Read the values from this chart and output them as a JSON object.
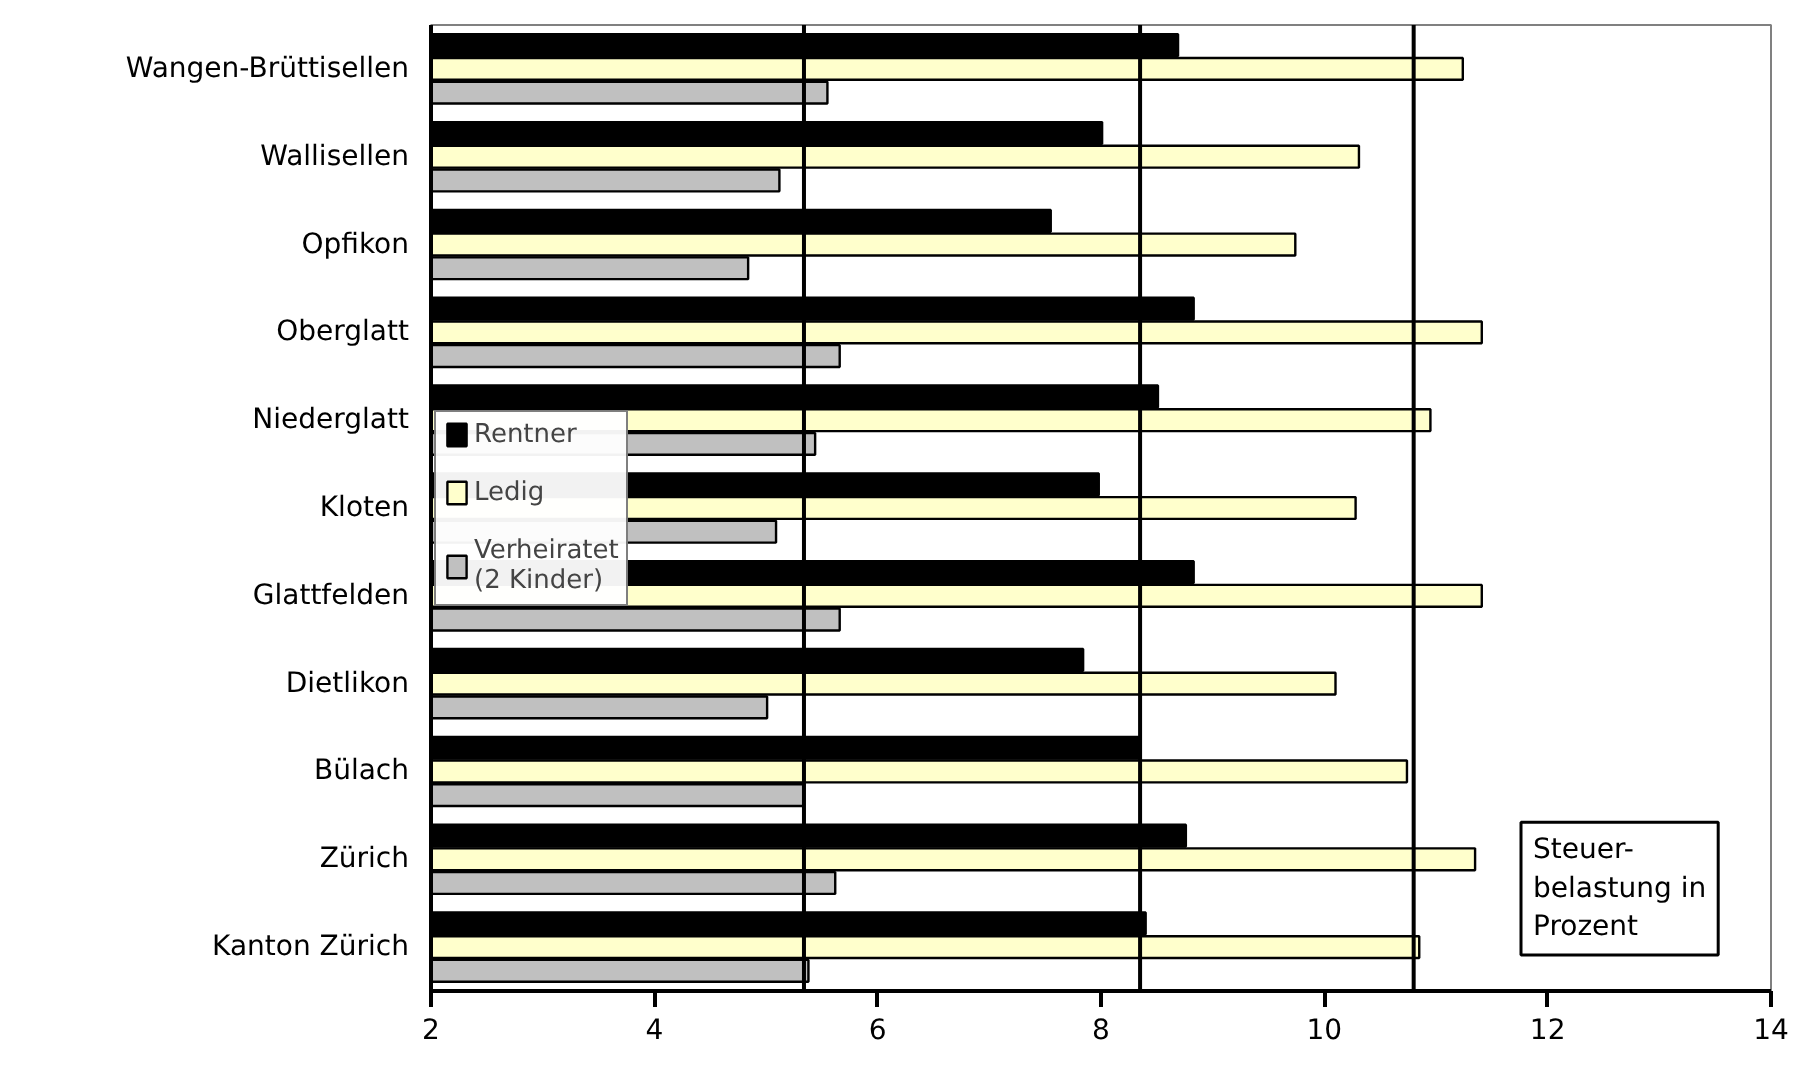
{
  "chart_data": {
    "type": "bar",
    "orientation": "horizontal",
    "categories": [
      "Wangen-Brüttisellen",
      "Wallisellen",
      "Opfikon",
      "Oberglatt",
      "Niederglatt",
      "Kloten",
      "Glattfelden",
      "Dietlikon",
      "Bülach",
      "Zürich",
      "Kanton Zürich"
    ],
    "series": [
      {
        "name": "Rentner",
        "color": "#000000",
        "values": [
          8.69,
          8.01,
          7.55,
          8.83,
          8.51,
          7.98,
          8.83,
          7.84,
          8.34,
          8.76,
          8.4
        ]
      },
      {
        "name": "Ledig",
        "color": "#ffffcc",
        "values": [
          11.24,
          10.31,
          9.74,
          11.41,
          10.95,
          10.28,
          11.41,
          10.1,
          10.74,
          11.35,
          10.85
        ]
      },
      {
        "name": "Verheiratet (2 Kinder)",
        "color": "#c0c0c0",
        "values": [
          5.55,
          5.12,
          4.84,
          5.66,
          5.44,
          5.09,
          5.66,
          5.01,
          5.34,
          5.62,
          5.38
        ]
      }
    ],
    "xlim": [
      2,
      14
    ],
    "xticks": [
      2,
      4,
      6,
      8,
      10,
      12,
      14
    ],
    "ref_lines": [
      {
        "axis": "x",
        "value": 5.34,
        "color": "#000000"
      },
      {
        "axis": "x",
        "value": 8.35,
        "color": "#000000"
      },
      {
        "axis": "x",
        "value": 10.8,
        "color": "#000000"
      }
    ],
    "annotations": [
      "Steuer-\nbelastung in\nProzent"
    ],
    "legend": "left",
    "grid": false
  }
}
